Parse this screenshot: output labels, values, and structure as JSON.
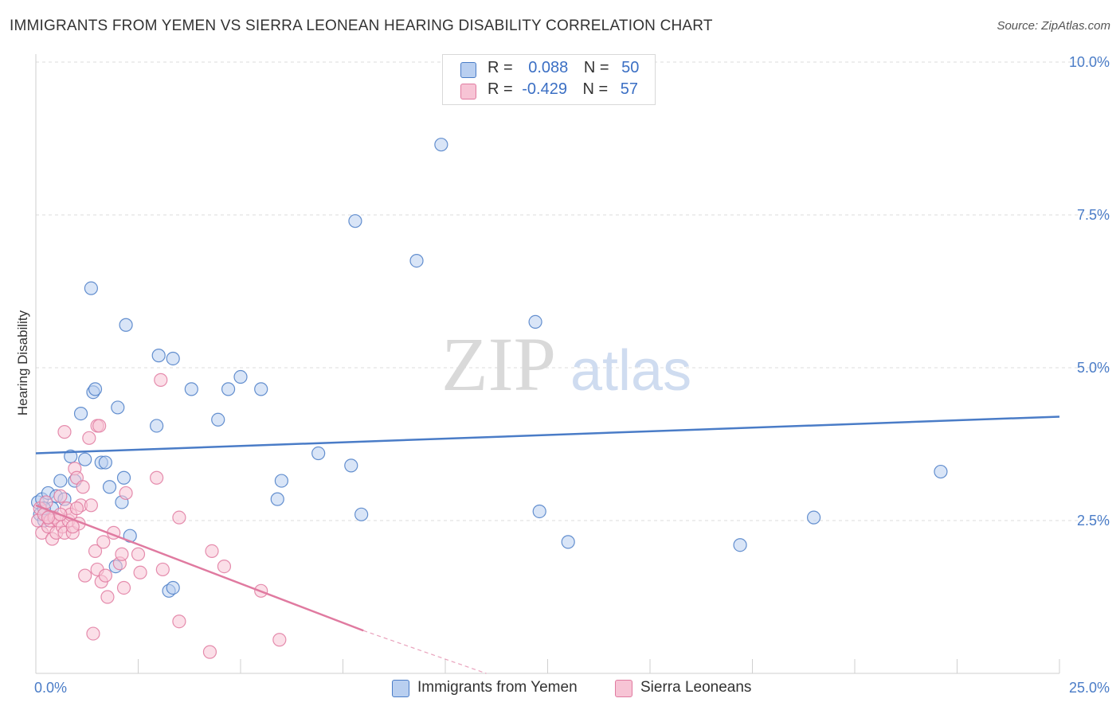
{
  "title": "IMMIGRANTS FROM YEMEN VS SIERRA LEONEAN HEARING DISABILITY CORRELATION CHART",
  "source": "Source: ZipAtlas.com",
  "watermark": {
    "zip": "ZIP",
    "atlas": "atlas"
  },
  "legend": {
    "rows": [
      {
        "r_label": "R =",
        "r_value": "0.088",
        "n_label": "N =",
        "n_value": "50"
      },
      {
        "r_label": "R =",
        "r_value": "-0.429",
        "n_label": "N =",
        "n_value": "57"
      }
    ]
  },
  "colors": {
    "blue": "#4a7cc7",
    "pink": "#e07aa0",
    "blue_fill": "#b9cff0",
    "pink_fill": "#f7c4d5"
  },
  "chart_data": {
    "type": "scatter",
    "title": "IMMIGRANTS FROM YEMEN VS SIERRA LEONEAN HEARING DISABILITY CORRELATION CHART",
    "xlabel": "",
    "ylabel": "Hearing Disability",
    "xlim": [
      0,
      25
    ],
    "ylim": [
      0,
      10
    ],
    "x_ticks": [
      "0.0%",
      "25.0%"
    ],
    "y_ticks": [
      {
        "value": 2.5,
        "label": "2.5%"
      },
      {
        "value": 5.0,
        "label": "5.0%"
      },
      {
        "value": 7.5,
        "label": "7.5%"
      },
      {
        "value": 10.0,
        "label": "10.0%"
      }
    ],
    "grid": true,
    "legend_position": "bottom",
    "series": [
      {
        "name": "Immigrants from Yemen",
        "color": "#4a7cc7",
        "trend": {
          "x0": 0,
          "y0": 3.6,
          "x1": 25,
          "y1": 4.2
        },
        "points": [
          [
            0.05,
            2.8
          ],
          [
            0.1,
            2.6
          ],
          [
            0.15,
            2.85
          ],
          [
            0.2,
            2.5
          ],
          [
            0.3,
            2.95
          ],
          [
            0.4,
            2.7
          ],
          [
            0.5,
            2.9
          ],
          [
            0.6,
            3.15
          ],
          [
            0.7,
            2.85
          ],
          [
            0.85,
            3.55
          ],
          [
            0.95,
            3.15
          ],
          [
            1.1,
            4.25
          ],
          [
            1.2,
            3.5
          ],
          [
            1.4,
            4.6
          ],
          [
            1.45,
            4.65
          ],
          [
            1.6,
            3.45
          ],
          [
            1.7,
            3.45
          ],
          [
            1.8,
            3.05
          ],
          [
            1.95,
            1.75
          ],
          [
            2.0,
            4.35
          ],
          [
            2.1,
            2.8
          ],
          [
            2.15,
            3.2
          ],
          [
            2.2,
            5.7
          ],
          [
            2.3,
            2.25
          ],
          [
            1.35,
            6.3
          ],
          [
            2.95,
            4.05
          ],
          [
            3.0,
            5.2
          ],
          [
            3.25,
            1.35
          ],
          [
            3.35,
            1.4
          ],
          [
            3.35,
            5.15
          ],
          [
            3.8,
            4.65
          ],
          [
            4.45,
            4.15
          ],
          [
            4.7,
            4.65
          ],
          [
            5.0,
            4.85
          ],
          [
            5.5,
            4.65
          ],
          [
            5.9,
            2.85
          ],
          [
            6.0,
            3.15
          ],
          [
            6.9,
            3.6
          ],
          [
            7.7,
            3.4
          ],
          [
            7.8,
            7.4
          ],
          [
            7.95,
            2.6
          ],
          [
            9.3,
            6.75
          ],
          [
            9.9,
            8.65
          ],
          [
            12.2,
            5.75
          ],
          [
            12.3,
            2.65
          ],
          [
            13.0,
            2.15
          ],
          [
            17.2,
            2.1
          ],
          [
            19.0,
            2.55
          ],
          [
            22.1,
            3.3
          ],
          [
            0.2,
            2.7
          ]
        ]
      },
      {
        "name": "Sierra Leoneans",
        "color": "#e07aa0",
        "trend": {
          "x0": 0,
          "y0": 2.75,
          "x1": 8,
          "y1": 0.7
        },
        "trend_dashed": {
          "x0": 8,
          "y0": 0.7,
          "x1": 11,
          "y1": 0.0
        },
        "points": [
          [
            0.05,
            2.5
          ],
          [
            0.1,
            2.7
          ],
          [
            0.15,
            2.3
          ],
          [
            0.2,
            2.6
          ],
          [
            0.25,
            2.8
          ],
          [
            0.3,
            2.4
          ],
          [
            0.35,
            2.5
          ],
          [
            0.4,
            2.2
          ],
          [
            0.45,
            2.55
          ],
          [
            0.5,
            2.3
          ],
          [
            0.55,
            2.5
          ],
          [
            0.6,
            2.9
          ],
          [
            0.65,
            2.4
          ],
          [
            0.7,
            2.3
          ],
          [
            0.7,
            3.95
          ],
          [
            0.75,
            2.7
          ],
          [
            0.8,
            2.5
          ],
          [
            0.85,
            2.6
          ],
          [
            0.9,
            2.3
          ],
          [
            0.95,
            3.35
          ],
          [
            1.0,
            3.2
          ],
          [
            1.05,
            2.45
          ],
          [
            1.1,
            2.75
          ],
          [
            1.15,
            3.05
          ],
          [
            1.2,
            1.6
          ],
          [
            1.3,
            3.85
          ],
          [
            1.35,
            2.75
          ],
          [
            1.4,
            0.65
          ],
          [
            1.45,
            2.0
          ],
          [
            1.5,
            1.7
          ],
          [
            1.5,
            4.05
          ],
          [
            1.55,
            4.05
          ],
          [
            1.6,
            1.5
          ],
          [
            1.65,
            2.15
          ],
          [
            1.7,
            1.6
          ],
          [
            1.75,
            1.25
          ],
          [
            1.9,
            2.3
          ],
          [
            2.05,
            1.8
          ],
          [
            2.1,
            1.95
          ],
          [
            2.15,
            1.4
          ],
          [
            2.2,
            2.95
          ],
          [
            2.5,
            1.95
          ],
          [
            2.55,
            1.65
          ],
          [
            2.95,
            3.2
          ],
          [
            3.05,
            4.8
          ],
          [
            3.1,
            1.7
          ],
          [
            3.5,
            0.85
          ],
          [
            3.5,
            2.55
          ],
          [
            4.25,
            0.35
          ],
          [
            4.3,
            2.0
          ],
          [
            4.6,
            1.75
          ],
          [
            5.5,
            1.35
          ],
          [
            5.95,
            0.55
          ],
          [
            1.0,
            2.7
          ],
          [
            0.3,
            2.55
          ],
          [
            0.6,
            2.6
          ],
          [
            0.9,
            2.4
          ]
        ]
      }
    ]
  }
}
